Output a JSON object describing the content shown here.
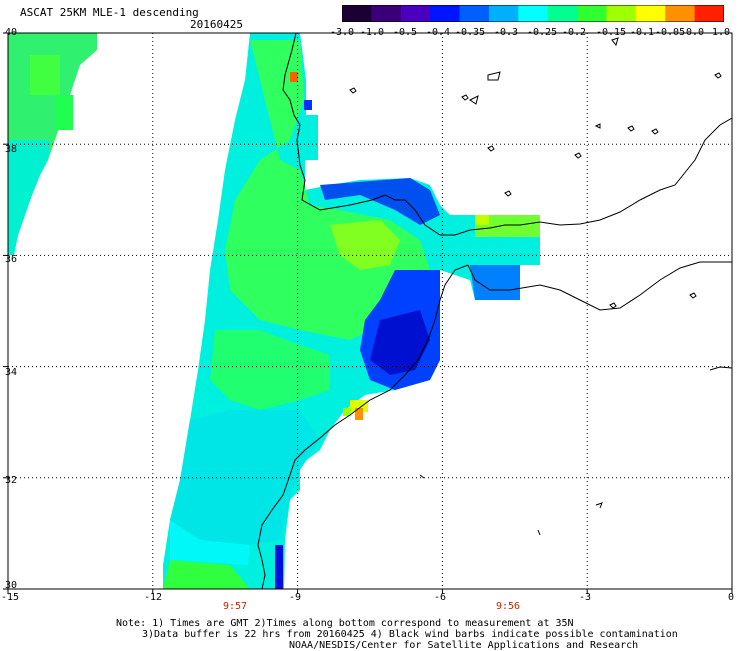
{
  "header": {
    "title": "ASCAT 25KM MLE-1 descending",
    "date": "20160425"
  },
  "colorbar": {
    "labels": [
      "-3.0",
      "-1.0",
      "-0.5",
      "-0.4",
      "-0.35",
      "-0.3",
      "-0.25",
      "-0.2",
      "-0.15",
      "-0.1",
      "-0.05",
      "0.0",
      "1.0"
    ],
    "colors": [
      "#1a0033",
      "#3a0077",
      "#4b00c0",
      "#0015ff",
      "#0060ff",
      "#00b0ff",
      "#00ffff",
      "#00ff90",
      "#30ff30",
      "#a0ff00",
      "#ffff00",
      "#ff9000",
      "#ff2000"
    ]
  },
  "axes": {
    "y_labels": [
      "40",
      "38",
      "36",
      "34",
      "32",
      "30"
    ],
    "x_labels": [
      "-15",
      "-12",
      "-9",
      "-6",
      "-3",
      "0"
    ]
  },
  "times": [
    "9:57",
    "9:56"
  ],
  "footer": {
    "line1": "Note: 1) Times are GMT 2)Times along bottom correspond to measurement at 35N",
    "line2": "3)Data buffer is 22 hrs from 20160425 4) Black wind barbs indicate possible contamination",
    "line3": "NOAA/NESDIS/Center for Satellite Applications and Research"
  },
  "colors": {
    "land_line": "#000000",
    "grid": "#000000",
    "background": "#ffffff"
  }
}
